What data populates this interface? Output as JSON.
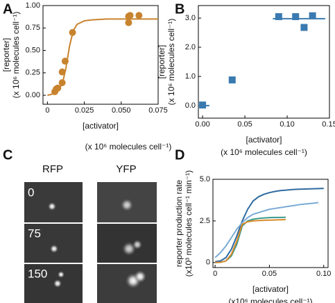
{
  "chart_data": [
    {
      "type": "scatter",
      "panel_label": "A",
      "xlabel": "[activator]",
      "xlabel_units": "(x 10⁶ molecules cell⁻¹)",
      "ylabel": "[reporter]",
      "ylabel_units": "(x 10⁶ molecules cell⁻¹)",
      "xlim": [
        -0.003,
        0.075
      ],
      "ylim": [
        -0.1,
        1.0
      ],
      "xticks": [
        0,
        0.025,
        {
          "value": 0.05,
          "label": "0.050"
        },
        0.075
      ],
      "yticks": [
        {
          "value": 0,
          "label": "0.00"
        },
        0.25,
        {
          "value": 0.5,
          "label": "0.50"
        },
        0.75,
        {
          "value": 1,
          "label": "1.00"
        }
      ],
      "points": {
        "marker": "circle",
        "color": "#c8832e",
        "x": [
          0.005,
          0.006,
          0.007,
          0.01,
          0.01,
          0.012,
          0.017,
          0.055,
          0.055,
          0.056,
          0.062
        ],
        "y": [
          0.04,
          0.07,
          0.08,
          0.14,
          0.26,
          0.38,
          0.7,
          0.81,
          0.88,
          0.89,
          0.89
        ]
      },
      "fit": {
        "color": "#c8832e",
        "x": [
          0,
          0.005,
          0.01,
          0.0125,
          0.015,
          0.0175,
          0.02,
          0.025,
          0.03,
          0.04,
          0.05,
          0.06,
          0.075
        ],
        "y": [
          0,
          0.02,
          0.12,
          0.3,
          0.55,
          0.72,
          0.79,
          0.83,
          0.84,
          0.85,
          0.85,
          0.85,
          0.85
        ]
      }
    },
    {
      "type": "scatter",
      "panel_label": "B",
      "xlabel": "[activator]",
      "xlabel_units": "(x 10⁶ molecules cell⁻¹)",
      "ylabel": "[reporter]",
      "ylabel_units": "(x 10⁶ molecules cell⁻¹)",
      "xlim": [
        -0.005,
        0.15
      ],
      "ylim": [
        -0.43,
        3.43
      ],
      "xticks": [
        {
          "value": 0,
          "label": "0.00"
        },
        0.05,
        {
          "value": 0.1,
          "label": "0.10"
        },
        0.15
      ],
      "yticks": [
        {
          "value": 0,
          "label": "0.0"
        },
        {
          "value": 1,
          "label": "1.0"
        },
        {
          "value": 2,
          "label": "2.0"
        },
        {
          "value": 3,
          "label": "3.0"
        }
      ],
      "points": {
        "marker": "square",
        "color": "#3a7ab0",
        "x": [
          0,
          0.035,
          0.09,
          0.11,
          0.12,
          0.13
        ],
        "y": [
          0.02,
          0.88,
          3.05,
          3.05,
          2.68,
          3.08
        ]
      },
      "fit": {
        "color": "#3a7ab0",
        "x": [
          -0.005,
          0.008,
          null,
          0.083,
          0.145
        ],
        "y": [
          0,
          0,
          null,
          2.98,
          2.98
        ]
      }
    },
    {
      "type": "line",
      "panel_label": "D",
      "xlabel": "[activator]",
      "xlabel_units": "(x10⁶ molecules cell⁻¹)",
      "ylabel": "reporter production rate",
      "ylabel_units": "(x10³ molecules cell⁻¹ min⁻¹)",
      "xlim": [
        -0.002,
        0.104
      ],
      "ylim": [
        -0.3,
        5.0
      ],
      "xticks": [
        0,
        0.05,
        {
          "value": 0.1,
          "label": "0.10"
        }
      ],
      "yticks": [
        0,
        2.5,
        {
          "value": 5,
          "label": "5.0"
        }
      ],
      "x": [
        0,
        0.005,
        0.01,
        0.015,
        0.02,
        0.025,
        0.03,
        0.035,
        0.04,
        0.045,
        0.05,
        0.055,
        0.06,
        0.065,
        0.07,
        0.075,
        0.08,
        0.085,
        0.09,
        0.095,
        0.1
      ],
      "series": [
        {
          "color": "#2e6aa0",
          "values": [
            0.05,
            0.1,
            0.3,
            0.8,
            1.6,
            2.5,
            3.2,
            3.7,
            3.95,
            4.1,
            4.2,
            4.27,
            4.32,
            4.35,
            4.38,
            4.4,
            4.41,
            4.42,
            4.43,
            4.44,
            4.45
          ]
        },
        {
          "color": "#7aaad6",
          "values": [
            0.3,
            0.6,
            1.0,
            1.5,
            2.0,
            2.4,
            2.7,
            2.9,
            3.0,
            3.1,
            3.2,
            3.25,
            3.3,
            3.35,
            3.4,
            3.45,
            3.5,
            3.53,
            3.56,
            3.6,
            null
          ]
        },
        {
          "color": "#3a9a8a",
          "values": [
            0,
            0.02,
            0.1,
            0.4,
            1.1,
            2.2,
            2.5,
            2.6,
            2.65,
            2.68,
            2.7,
            2.71,
            2.71,
            2.72,
            null,
            null,
            null,
            null,
            null,
            null,
            null
          ]
        },
        {
          "color": "#d98a2a",
          "values": [
            0,
            0.02,
            0.1,
            0.5,
            1.3,
            2.3,
            2.45,
            2.5,
            2.52,
            2.54,
            2.55,
            2.56,
            2.57,
            2.58,
            null,
            null,
            null,
            null,
            null,
            null,
            null
          ]
        }
      ]
    }
  ],
  "panel_c": {
    "panel_label": "C",
    "columns": [
      "RFP",
      "YFP"
    ],
    "rows": [
      "0",
      "75",
      "150"
    ]
  }
}
